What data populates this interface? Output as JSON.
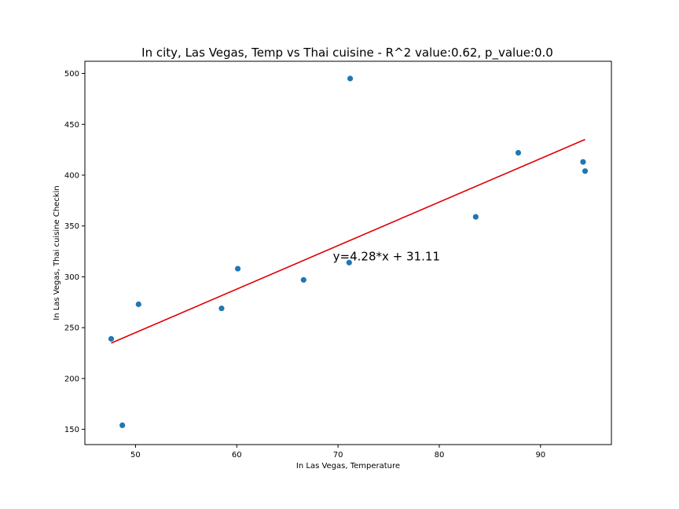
{
  "chart_data": {
    "type": "scatter",
    "title": "In city, Las Vegas, Temp vs Thai cuisine - R^2 value:0.62, p_value:0.0",
    "xlabel": "In Las Vegas,  Temperature",
    "ylabel": "In Las Vegas,  Thai cuisine Checkin",
    "xlim": [
      45,
      97
    ],
    "ylim": [
      135,
      512
    ],
    "xticks": [
      50,
      60,
      70,
      80,
      90
    ],
    "yticks": [
      150,
      200,
      250,
      300,
      350,
      400,
      450,
      500
    ],
    "grid": false,
    "points": [
      {
        "x": 47.6,
        "y": 239
      },
      {
        "x": 48.7,
        "y": 154
      },
      {
        "x": 50.3,
        "y": 273
      },
      {
        "x": 58.5,
        "y": 269
      },
      {
        "x": 60.1,
        "y": 308
      },
      {
        "x": 66.6,
        "y": 297
      },
      {
        "x": 71.1,
        "y": 314
      },
      {
        "x": 71.2,
        "y": 495
      },
      {
        "x": 83.6,
        "y": 359
      },
      {
        "x": 87.8,
        "y": 422
      },
      {
        "x": 94.2,
        "y": 413
      },
      {
        "x": 94.4,
        "y": 404
      }
    ],
    "regression": {
      "slope": 4.28,
      "intercept": 31.11,
      "x_range": [
        47.6,
        94.4
      ]
    },
    "annotation": {
      "text": "y=4.28*x + 31.11",
      "x": 69.5,
      "y": 316
    },
    "colors": {
      "points": "#1f77b4",
      "line": "#e00000"
    }
  }
}
